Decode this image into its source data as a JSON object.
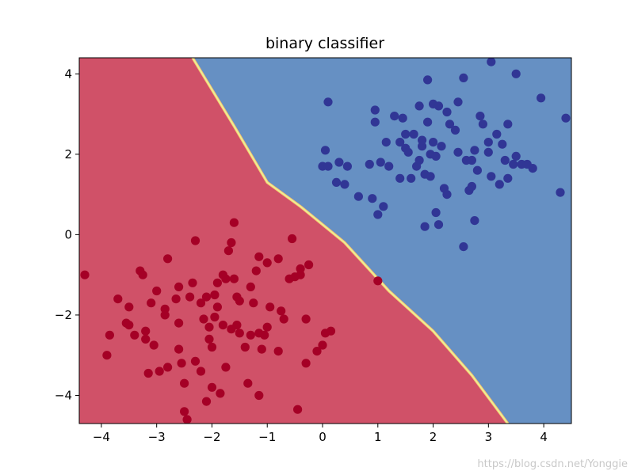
{
  "chart_data": {
    "type": "scatter",
    "title": "binary classifier",
    "xlabel": "",
    "ylabel": "",
    "xlim": [
      -4.4,
      4.5
    ],
    "ylim": [
      -4.7,
      4.4
    ],
    "grid": false,
    "xticks": [
      -4,
      -3,
      -2,
      -1,
      0,
      1,
      2,
      3,
      4
    ],
    "yticks": [
      -4,
      -2,
      0,
      2,
      4
    ],
    "xtick_labels": [
      "−4",
      "−3",
      "−2",
      "−1",
      "0",
      "1",
      "2",
      "3",
      "4"
    ],
    "ytick_labels": [
      "−4",
      "−2",
      "0",
      "2",
      "4"
    ],
    "decision_boundary": {
      "x": [
        -2.35,
        -1.6,
        -1.0,
        -0.4,
        0.4,
        1.2,
        2.0,
        2.7,
        3.35
      ],
      "y": [
        4.4,
        2.7,
        1.3,
        0.7,
        -0.2,
        -1.4,
        -2.4,
        -3.5,
        -4.7
      ],
      "colors": {
        "region_0": "#d05168",
        "region_1": "#6690c3",
        "boundary": "#e6f598"
      }
    },
    "series": [
      {
        "class": 0,
        "color": "#a50026",
        "points": [
          [
            -4.3,
            -1.0
          ],
          [
            -3.9,
            -3.0
          ],
          [
            -3.85,
            -2.5
          ],
          [
            -3.7,
            -1.6
          ],
          [
            -3.55,
            -2.2
          ],
          [
            -3.5,
            -1.8
          ],
          [
            -3.5,
            -2.25
          ],
          [
            -3.4,
            -2.5
          ],
          [
            -3.3,
            -0.9
          ],
          [
            -3.25,
            -1.0
          ],
          [
            -3.2,
            -2.4
          ],
          [
            -3.2,
            -2.6
          ],
          [
            -3.15,
            -3.45
          ],
          [
            -3.1,
            -1.7
          ],
          [
            -3.05,
            -2.75
          ],
          [
            -3.0,
            -1.4
          ],
          [
            -2.95,
            -3.4
          ],
          [
            -2.85,
            -1.85
          ],
          [
            -2.85,
            -2.0
          ],
          [
            -2.8,
            -0.6
          ],
          [
            -2.8,
            -3.3
          ],
          [
            -2.65,
            -1.6
          ],
          [
            -2.6,
            -1.3
          ],
          [
            -2.6,
            -2.2
          ],
          [
            -2.6,
            -2.85
          ],
          [
            -2.55,
            -3.2
          ],
          [
            -2.5,
            -3.7
          ],
          [
            -2.5,
            -4.4
          ],
          [
            -2.45,
            -4.6
          ],
          [
            -2.4,
            -1.55
          ],
          [
            -2.35,
            -1.2
          ],
          [
            -2.3,
            -3.15
          ],
          [
            -2.3,
            -0.15
          ],
          [
            -2.2,
            -3.4
          ],
          [
            -2.2,
            -1.7
          ],
          [
            -2.15,
            -2.1
          ],
          [
            -2.1,
            -1.55
          ],
          [
            -2.1,
            -4.15
          ],
          [
            -2.05,
            -2.3
          ],
          [
            -2.05,
            -2.6
          ],
          [
            -2.0,
            -2.8
          ],
          [
            -2.0,
            -3.8
          ],
          [
            -1.95,
            -2.05
          ],
          [
            -1.95,
            -1.5
          ],
          [
            -1.9,
            -1.2
          ],
          [
            -1.9,
            -1.8
          ],
          [
            -1.85,
            -3.95
          ],
          [
            -1.8,
            -1.0
          ],
          [
            -1.8,
            -2.25
          ],
          [
            -1.75,
            -3.3
          ],
          [
            -1.75,
            -1.1
          ],
          [
            -1.7,
            -0.4
          ],
          [
            -1.65,
            -0.2
          ],
          [
            -1.65,
            -2.35
          ],
          [
            -1.6,
            -1.1
          ],
          [
            -1.6,
            0.3
          ],
          [
            -1.55,
            -1.55
          ],
          [
            -1.55,
            -2.25
          ],
          [
            -1.5,
            -1.65
          ],
          [
            -1.5,
            -2.45
          ],
          [
            -1.4,
            -2.8
          ],
          [
            -1.35,
            -3.7
          ],
          [
            -1.3,
            -2.5
          ],
          [
            -1.3,
            -1.3
          ],
          [
            -1.25,
            -1.7
          ],
          [
            -1.2,
            -0.9
          ],
          [
            -1.15,
            -4.0
          ],
          [
            -1.15,
            -0.55
          ],
          [
            -1.15,
            -2.45
          ],
          [
            -1.1,
            -2.85
          ],
          [
            -1.05,
            -2.5
          ],
          [
            -1.0,
            -2.3
          ],
          [
            -1.0,
            -0.7
          ],
          [
            -0.95,
            -1.8
          ],
          [
            -0.8,
            -0.6
          ],
          [
            -0.8,
            -2.9
          ],
          [
            -0.75,
            -1.9
          ],
          [
            -0.7,
            -2.1
          ],
          [
            -0.6,
            -1.1
          ],
          [
            -0.55,
            -0.1
          ],
          [
            -0.5,
            -1.05
          ],
          [
            -0.45,
            -4.35
          ],
          [
            -0.4,
            -0.85
          ],
          [
            -0.4,
            -1.0
          ],
          [
            -0.3,
            -2.1
          ],
          [
            -0.3,
            -3.2
          ],
          [
            -0.25,
            -0.75
          ],
          [
            -0.1,
            -2.9
          ],
          [
            0.0,
            -2.75
          ],
          [
            0.05,
            -2.45
          ],
          [
            0.15,
            -2.4
          ],
          [
            1.0,
            -1.15
          ]
        ]
      },
      {
        "class": 1,
        "color": "#313695",
        "points": [
          [
            0.0,
            1.7
          ],
          [
            0.05,
            2.1
          ],
          [
            0.1,
            1.7
          ],
          [
            0.1,
            3.3
          ],
          [
            0.25,
            1.3
          ],
          [
            0.3,
            1.8
          ],
          [
            0.4,
            1.25
          ],
          [
            0.45,
            1.7
          ],
          [
            0.65,
            0.95
          ],
          [
            0.85,
            1.75
          ],
          [
            0.9,
            0.9
          ],
          [
            0.95,
            3.1
          ],
          [
            0.95,
            2.8
          ],
          [
            1.0,
            0.5
          ],
          [
            1.05,
            1.8
          ],
          [
            1.1,
            0.7
          ],
          [
            1.15,
            2.3
          ],
          [
            1.2,
            1.7
          ],
          [
            1.3,
            2.95
          ],
          [
            1.4,
            2.3
          ],
          [
            1.4,
            1.4
          ],
          [
            1.45,
            2.9
          ],
          [
            1.5,
            2.5
          ],
          [
            1.5,
            2.15
          ],
          [
            1.55,
            2.05
          ],
          [
            1.6,
            1.4
          ],
          [
            1.65,
            2.5
          ],
          [
            1.7,
            1.7
          ],
          [
            1.75,
            3.2
          ],
          [
            1.75,
            1.85
          ],
          [
            1.8,
            2.2
          ],
          [
            1.8,
            2.35
          ],
          [
            1.85,
            1.5
          ],
          [
            1.85,
            0.2
          ],
          [
            1.9,
            2.8
          ],
          [
            1.9,
            3.85
          ],
          [
            1.95,
            2.0
          ],
          [
            1.95,
            1.45
          ],
          [
            2.0,
            3.25
          ],
          [
            2.0,
            2.3
          ],
          [
            2.05,
            1.95
          ],
          [
            2.05,
            0.55
          ],
          [
            2.1,
            3.2
          ],
          [
            2.1,
            0.25
          ],
          [
            2.15,
            2.2
          ],
          [
            2.2,
            1.15
          ],
          [
            2.25,
            3.05
          ],
          [
            2.25,
            1.0
          ],
          [
            2.3,
            2.75
          ],
          [
            2.4,
            2.6
          ],
          [
            2.45,
            2.05
          ],
          [
            2.45,
            3.3
          ],
          [
            2.55,
            3.9
          ],
          [
            2.55,
            -0.3
          ],
          [
            2.6,
            1.85
          ],
          [
            2.65,
            1.1
          ],
          [
            2.7,
            1.85
          ],
          [
            2.7,
            1.2
          ],
          [
            2.75,
            0.35
          ],
          [
            2.75,
            2.1
          ],
          [
            2.8,
            1.6
          ],
          [
            2.85,
            2.95
          ],
          [
            2.9,
            2.75
          ],
          [
            3.0,
            2.05
          ],
          [
            3.0,
            2.3
          ],
          [
            3.05,
            4.3
          ],
          [
            3.05,
            1.45
          ],
          [
            3.15,
            2.5
          ],
          [
            3.2,
            1.25
          ],
          [
            3.25,
            2.25
          ],
          [
            3.3,
            1.85
          ],
          [
            3.35,
            1.4
          ],
          [
            3.35,
            2.75
          ],
          [
            3.45,
            1.75
          ],
          [
            3.5,
            1.95
          ],
          [
            3.5,
            4.0
          ],
          [
            3.6,
            1.75
          ],
          [
            3.7,
            1.75
          ],
          [
            3.8,
            1.65
          ],
          [
            3.95,
            3.4
          ],
          [
            4.3,
            1.05
          ],
          [
            4.4,
            2.9
          ]
        ]
      }
    ]
  },
  "watermark": "https://blog.csdn.net/Yonggie"
}
